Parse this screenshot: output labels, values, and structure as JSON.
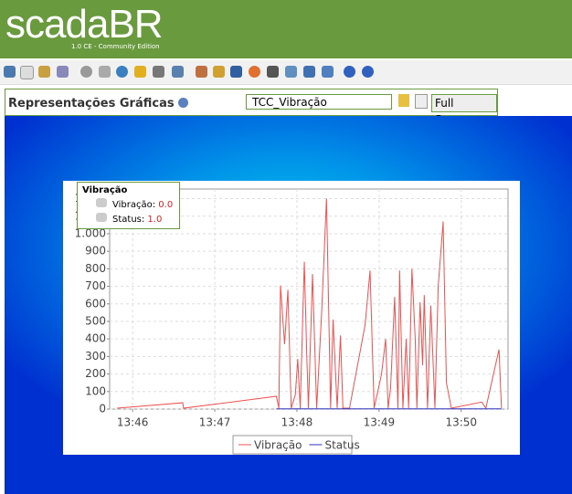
{
  "header": {
    "logo": "scadaBR",
    "edition": "1.0 CE - Community Edition"
  },
  "panel": {
    "title": "Representações Gráficas",
    "view": "TCC_Vibração",
    "button": "Full Screen"
  },
  "point_box": {
    "title": "Vibração",
    "rows": [
      {
        "label": "Vibração:",
        "value": "0.0"
      },
      {
        "label": "Status:",
        "value": "1.0"
      }
    ]
  },
  "chart_data": {
    "type": "line",
    "series": [
      {
        "name": "Vibração",
        "color": "#f05050",
        "x": [
          45.81,
          46.61,
          46.62,
          47.75,
          47.78,
          47.8,
          47.85,
          47.89,
          47.93,
          47.98,
          48.01,
          48.04,
          48.09,
          48.12,
          48.14,
          48.19,
          48.24,
          48.3,
          48.36,
          48.41,
          48.44,
          48.49,
          48.53,
          48.56,
          48.64,
          48.83,
          48.89,
          48.94,
          49.03,
          49.08,
          49.11,
          49.14,
          49.19,
          49.23,
          49.25,
          49.29,
          49.33,
          49.36,
          49.4,
          49.44,
          49.46,
          49.5,
          49.53,
          49.55,
          49.59,
          49.63,
          49.68,
          49.72,
          49.78,
          49.82,
          49.88,
          50.25,
          50.3,
          50.46,
          50.49
        ],
        "values": [
          5,
          36,
          5,
          73,
          5,
          705,
          370,
          680,
          5,
          80,
          285,
          5,
          840,
          300,
          5,
          770,
          5,
          540,
          1200,
          5,
          510,
          5,
          420,
          5,
          5,
          480,
          790,
          5,
          200,
          400,
          5,
          120,
          640,
          5,
          790,
          5,
          400,
          5,
          800,
          400,
          5,
          610,
          250,
          650,
          5,
          590,
          5,
          700,
          1070,
          150,
          5,
          40,
          5,
          340,
          5
        ]
      },
      {
        "name": "Status",
        "color": "#3030c0",
        "x": [
          47.75,
          50.49
        ],
        "values": [
          1,
          1
        ]
      }
    ],
    "xlim": [
      45.72,
      50.57
    ],
    "xticks": [
      {
        "value": 46,
        "label": "13:46"
      },
      {
        "value": 47,
        "label": "13:47"
      },
      {
        "value": 48,
        "label": "13:48"
      },
      {
        "value": 49,
        "label": "13:49"
      },
      {
        "value": 50,
        "label": "13:50"
      }
    ],
    "ylim": [
      0,
      1255
    ],
    "yticks": [
      0,
      100,
      200,
      300,
      400,
      500,
      600,
      700,
      800,
      900,
      {
        "value": 1000,
        "label": "1.000"
      },
      {
        "value": 1100,
        "label": "1.100"
      },
      {
        "value": 1200,
        "label": "1.200"
      }
    ],
    "grid": true,
    "legend": "bottom"
  }
}
